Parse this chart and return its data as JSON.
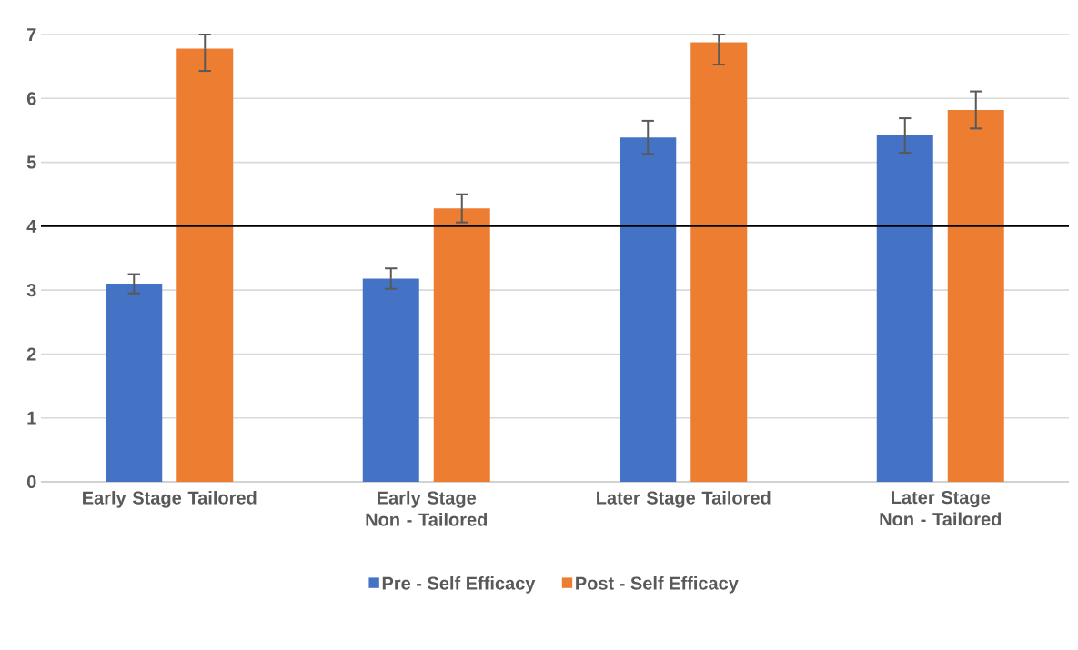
{
  "chart_data": {
    "type": "bar",
    "categories": [
      "Early Stage Tailored",
      "Early Stage Non - Tailored",
      "Later Stage Tailored",
      "Later Stage Non - Tailored"
    ],
    "series": [
      {
        "name": "Pre - Self Efficacy",
        "color": "#4472c4",
        "values": [
          3.1,
          3.18,
          5.39,
          5.42
        ],
        "errors": [
          0.15,
          0.16,
          0.26,
          0.27
        ]
      },
      {
        "name": "Post - Self Efficacy",
        "color": "#ed7d31",
        "values": [
          6.78,
          4.28,
          6.88,
          5.82
        ],
        "errors": [
          [
            6.43,
            7.0
          ],
          0.22,
          [
            6.53,
            7.0
          ],
          0.29
        ]
      }
    ],
    "ylim": [
      0,
      7
    ],
    "yticks": [
      0,
      1,
      2,
      3,
      4,
      5,
      6,
      7
    ],
    "grid": "y",
    "legend": "bottom",
    "ref_lines": [
      {
        "axis": "y",
        "value": 4,
        "color": "#000000"
      }
    ]
  }
}
